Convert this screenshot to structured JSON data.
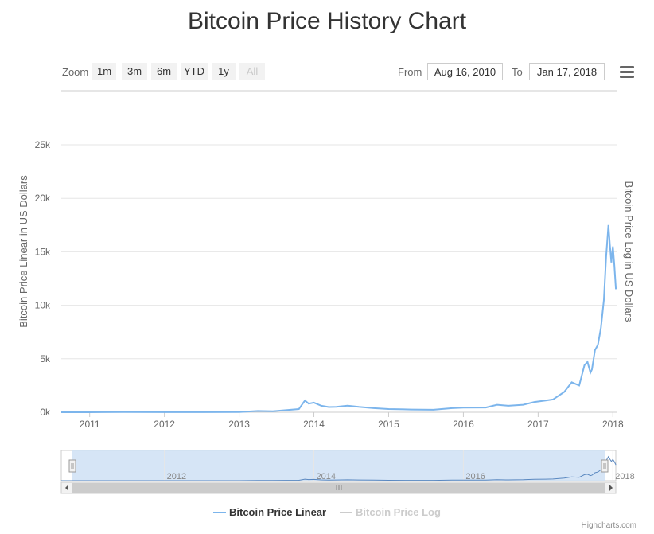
{
  "title": "Bitcoin Price History Chart",
  "range_selector": {
    "zoom_label": "Zoom",
    "buttons": [
      "1m",
      "3m",
      "6m",
      "YTD",
      "1y",
      "All"
    ],
    "selected": "All",
    "from_label": "From",
    "from_value": "Aug 16, 2010",
    "to_label": "To",
    "to_value": "Jan 17, 2018"
  },
  "credits": "Highcharts.com",
  "colors": {
    "linear_series": "#7cb5ec",
    "log_series_hidden": "#cccccc",
    "navigator_fill": "#cfe0f4",
    "grid": "#e6e6e6"
  },
  "icons": {
    "export_menu": "hamburger-menu-icon"
  },
  "chart_data": {
    "type": "line",
    "title": "Bitcoin Price History Chart",
    "ylabel": "Bitcoin Price Linear in US Dollars",
    "ylabel_right": "Bitcoin Price Log in US Dollars",
    "ylim": [
      0,
      25000
    ],
    "y_ticks": [
      0,
      5000,
      10000,
      15000,
      20000,
      25000
    ],
    "y_tick_labels": [
      "0k",
      "5k",
      "10k",
      "15k",
      "20k",
      "25k"
    ],
    "x_ticks": [
      "2011",
      "2012",
      "2013",
      "2014",
      "2015",
      "2016",
      "2017",
      "2018"
    ],
    "navigator_ticks": [
      "2012",
      "2014",
      "2016",
      "2018"
    ],
    "xlim": [
      2010.62,
      2018.05
    ],
    "grid": true,
    "legend_position": "bottom",
    "series": [
      {
        "name": "Bitcoin Price Linear",
        "visible": true,
        "x": [
          2010.62,
          2011.0,
          2011.45,
          2012.0,
          2012.5,
          2013.0,
          2013.25,
          2013.45,
          2013.8,
          2013.88,
          2013.93,
          2014.0,
          2014.1,
          2014.2,
          2014.3,
          2014.45,
          2014.6,
          2014.8,
          2015.0,
          2015.3,
          2015.6,
          2015.85,
          2016.0,
          2016.3,
          2016.45,
          2016.6,
          2016.8,
          2016.95,
          2017.1,
          2017.2,
          2017.35,
          2017.45,
          2017.55,
          2017.62,
          2017.66,
          2017.7,
          2017.72,
          2017.76,
          2017.8,
          2017.84,
          2017.88,
          2017.91,
          2017.94,
          2017.96,
          2017.98,
          2018.0,
          2018.02,
          2018.04
        ],
        "y": [
          0,
          0,
          15,
          5,
          10,
          15,
          120,
          100,
          300,
          1100,
          800,
          900,
          600,
          480,
          500,
          620,
          500,
          380,
          300,
          250,
          230,
          380,
          430,
          440,
          700,
          600,
          700,
          960,
          1100,
          1200,
          1900,
          2800,
          2500,
          4400,
          4700,
          3700,
          4000,
          5800,
          6300,
          7900,
          10500,
          14500,
          17500,
          15700,
          14000,
          15500,
          13700,
          11500
        ]
      },
      {
        "name": "Bitcoin Price Log",
        "visible": false,
        "x": [],
        "y": []
      }
    ]
  }
}
